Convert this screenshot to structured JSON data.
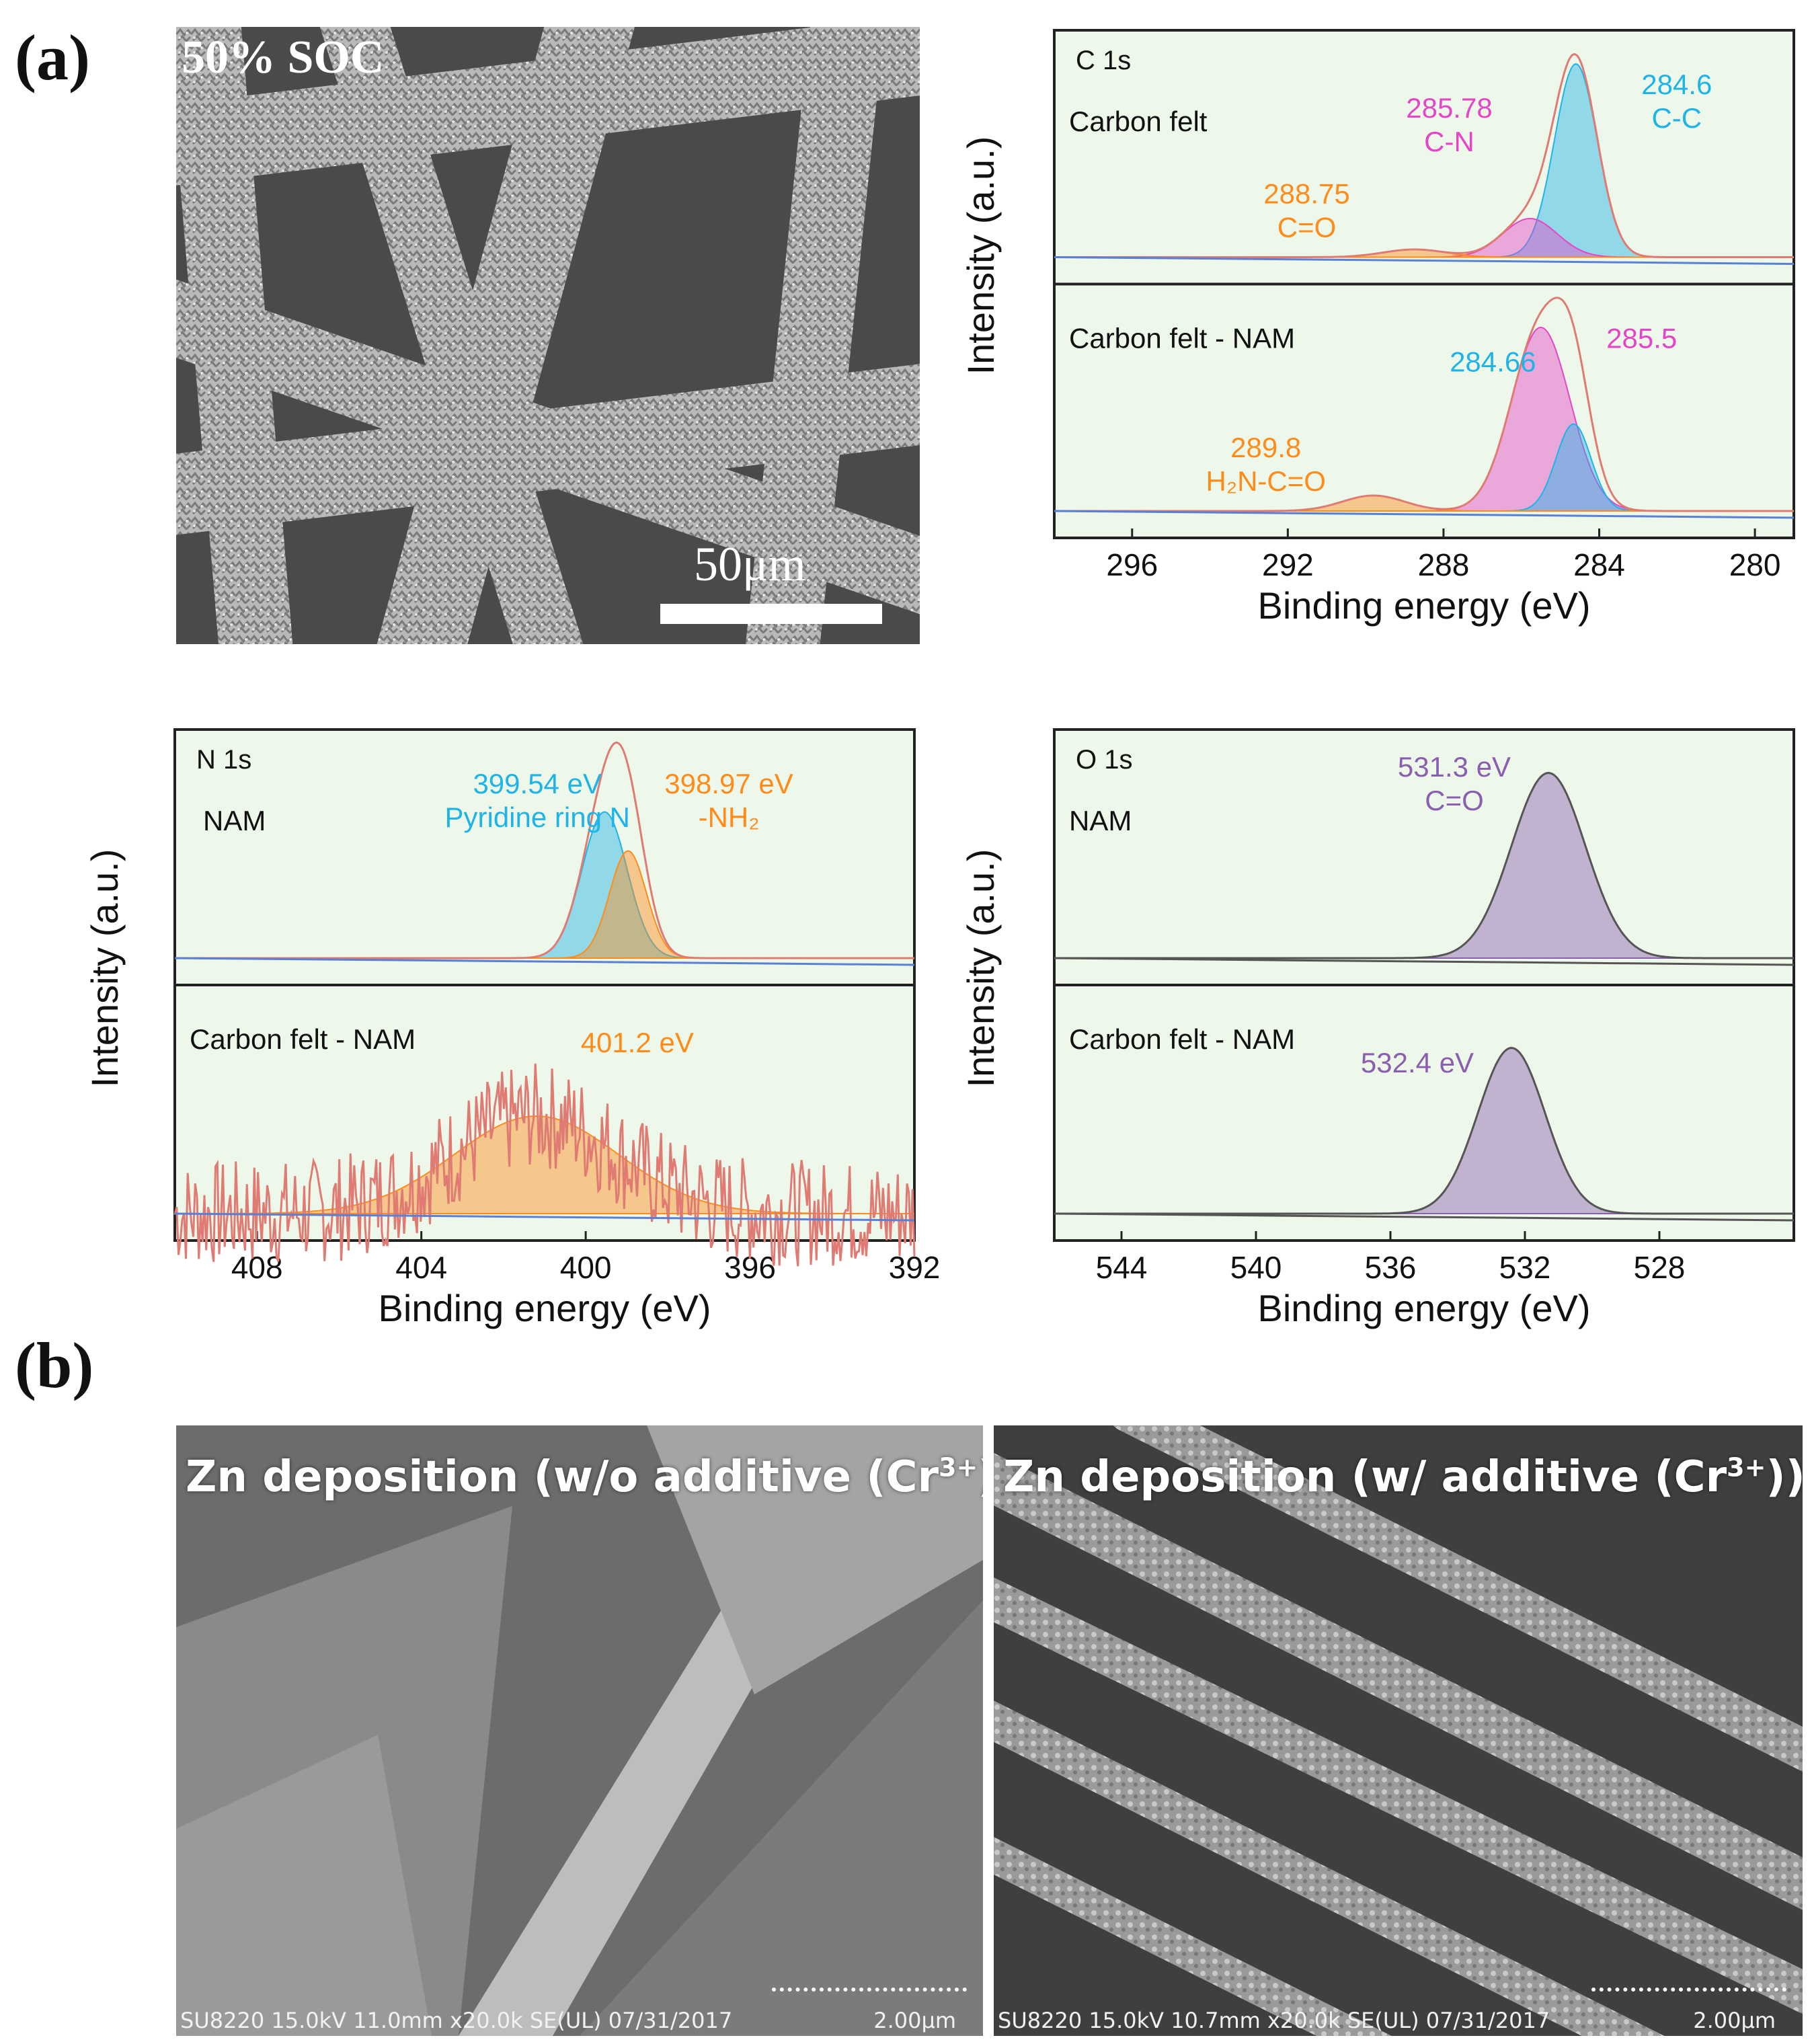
{
  "panel_labels": {
    "a": "(a)",
    "b": "(b)"
  },
  "sem_a": {
    "overlay_text": "50% SOC",
    "scale_label": "50μm"
  },
  "colors": {
    "panel_bg": "#eef8ea",
    "envelope": "#e07b74",
    "baseline": "#5a7fd6",
    "green_fill": "#7dc97a",
    "magenta": "#e546c8",
    "cyan": "#1fb4e8",
    "orange": "#ff8c1a",
    "purple": "#8a5fb0",
    "grey_line": "#555555"
  },
  "chart_data": [
    {
      "id": "C1s",
      "type": "line",
      "title": "C 1s",
      "xlabel": "Binding energy (eV)",
      "ylabel": "Intensity (a.u.)",
      "xlim": [
        298,
        279
      ],
      "x_reversed": true,
      "xticks": [
        296,
        292,
        288,
        284,
        280
      ],
      "subplots": [
        {
          "label": "Carbon felt",
          "peaks": [
            {
              "center": 284.6,
              "height": 1.0,
              "width": 0.55,
              "color": "#1fb4e8",
              "label_value": "284.6",
              "label_group": "C-C"
            },
            {
              "center": 285.78,
              "height": 0.2,
              "width": 0.7,
              "color": "#e546c8",
              "label_value": "285.78",
              "label_group": "C-N"
            },
            {
              "center": 288.75,
              "height": 0.04,
              "width": 0.8,
              "color": "#ff8c1a",
              "label_value": "288.75",
              "label_group": "C=O"
            }
          ]
        },
        {
          "label": "Carbon felt - NAM",
          "peaks": [
            {
              "center": 285.5,
              "height": 0.95,
              "width": 0.75,
              "color": "#e546c8",
              "label_value": "285.5",
              "label_group": ""
            },
            {
              "center": 284.66,
              "height": 0.45,
              "width": 0.45,
              "color": "#1fb4e8",
              "label_value": "284.66",
              "label_group": ""
            },
            {
              "center": 289.8,
              "height": 0.08,
              "width": 0.8,
              "color": "#ff8c1a",
              "label_value": "289.8",
              "label_group": "H₂N-C=O"
            }
          ]
        }
      ]
    },
    {
      "id": "N1s",
      "type": "line",
      "title": "N 1s",
      "xlabel": "Binding energy (eV)",
      "ylabel": "Intensity (a.u.)",
      "xlim": [
        410,
        392
      ],
      "x_reversed": true,
      "xticks": [
        408,
        404,
        400,
        396,
        392
      ],
      "subplots": [
        {
          "label": "NAM",
          "peaks": [
            {
              "center": 399.54,
              "height": 0.75,
              "width": 0.55,
              "color": "#1fb4e8",
              "label_value": "399.54 eV",
              "label_group": "Pyridine ring N"
            },
            {
              "center": 398.97,
              "height": 0.55,
              "width": 0.45,
              "color": "#ff8c1a",
              "label_value": "398.97 eV",
              "label_group": "-NH₂"
            }
          ]
        },
        {
          "label": "Carbon felt - NAM",
          "peaks": [
            {
              "center": 401.2,
              "height": 0.5,
              "width": 2.0,
              "color": "#ff8c1a",
              "label_value": "401.2 eV",
              "label_group": ""
            }
          ],
          "noisy": true
        }
      ]
    },
    {
      "id": "O1s",
      "type": "line",
      "title": "O 1s",
      "xlabel": "Binding energy (eV)",
      "ylabel": "Intensity (a.u.)",
      "xlim": [
        546,
        524
      ],
      "x_reversed": true,
      "xticks": [
        544,
        540,
        536,
        532,
        528
      ],
      "subplots": [
        {
          "label": "NAM",
          "peaks": [
            {
              "center": 531.3,
              "height": 0.95,
              "width": 1.1,
              "color": "#8a5fb0",
              "label_value": "531.3 eV",
              "label_group": "C=O"
            }
          ]
        },
        {
          "label": "Carbon felt - NAM",
          "peaks": [
            {
              "center": 532.4,
              "height": 0.85,
              "width": 1.0,
              "color": "#8a5fb0",
              "label_value": "532.4 eV",
              "label_group": ""
            }
          ]
        }
      ]
    }
  ],
  "sem_b": [
    {
      "title_prefix": "Zn deposition (w/o additive (Cr",
      "title_sup": "3+",
      "title_suffix": "))",
      "footer": "SU8220 15.0kV 11.0mm x20.0k SE(UL) 07/31/2017",
      "scale": "2.00μm"
    },
    {
      "title_prefix": "Zn deposition (w/ additive (Cr",
      "title_sup": "3+",
      "title_suffix": "))",
      "footer": "SU8220 15.0kV 10.7mm x20.0k SE(UL) 07/31/2017",
      "scale": "2.00μm"
    }
  ]
}
